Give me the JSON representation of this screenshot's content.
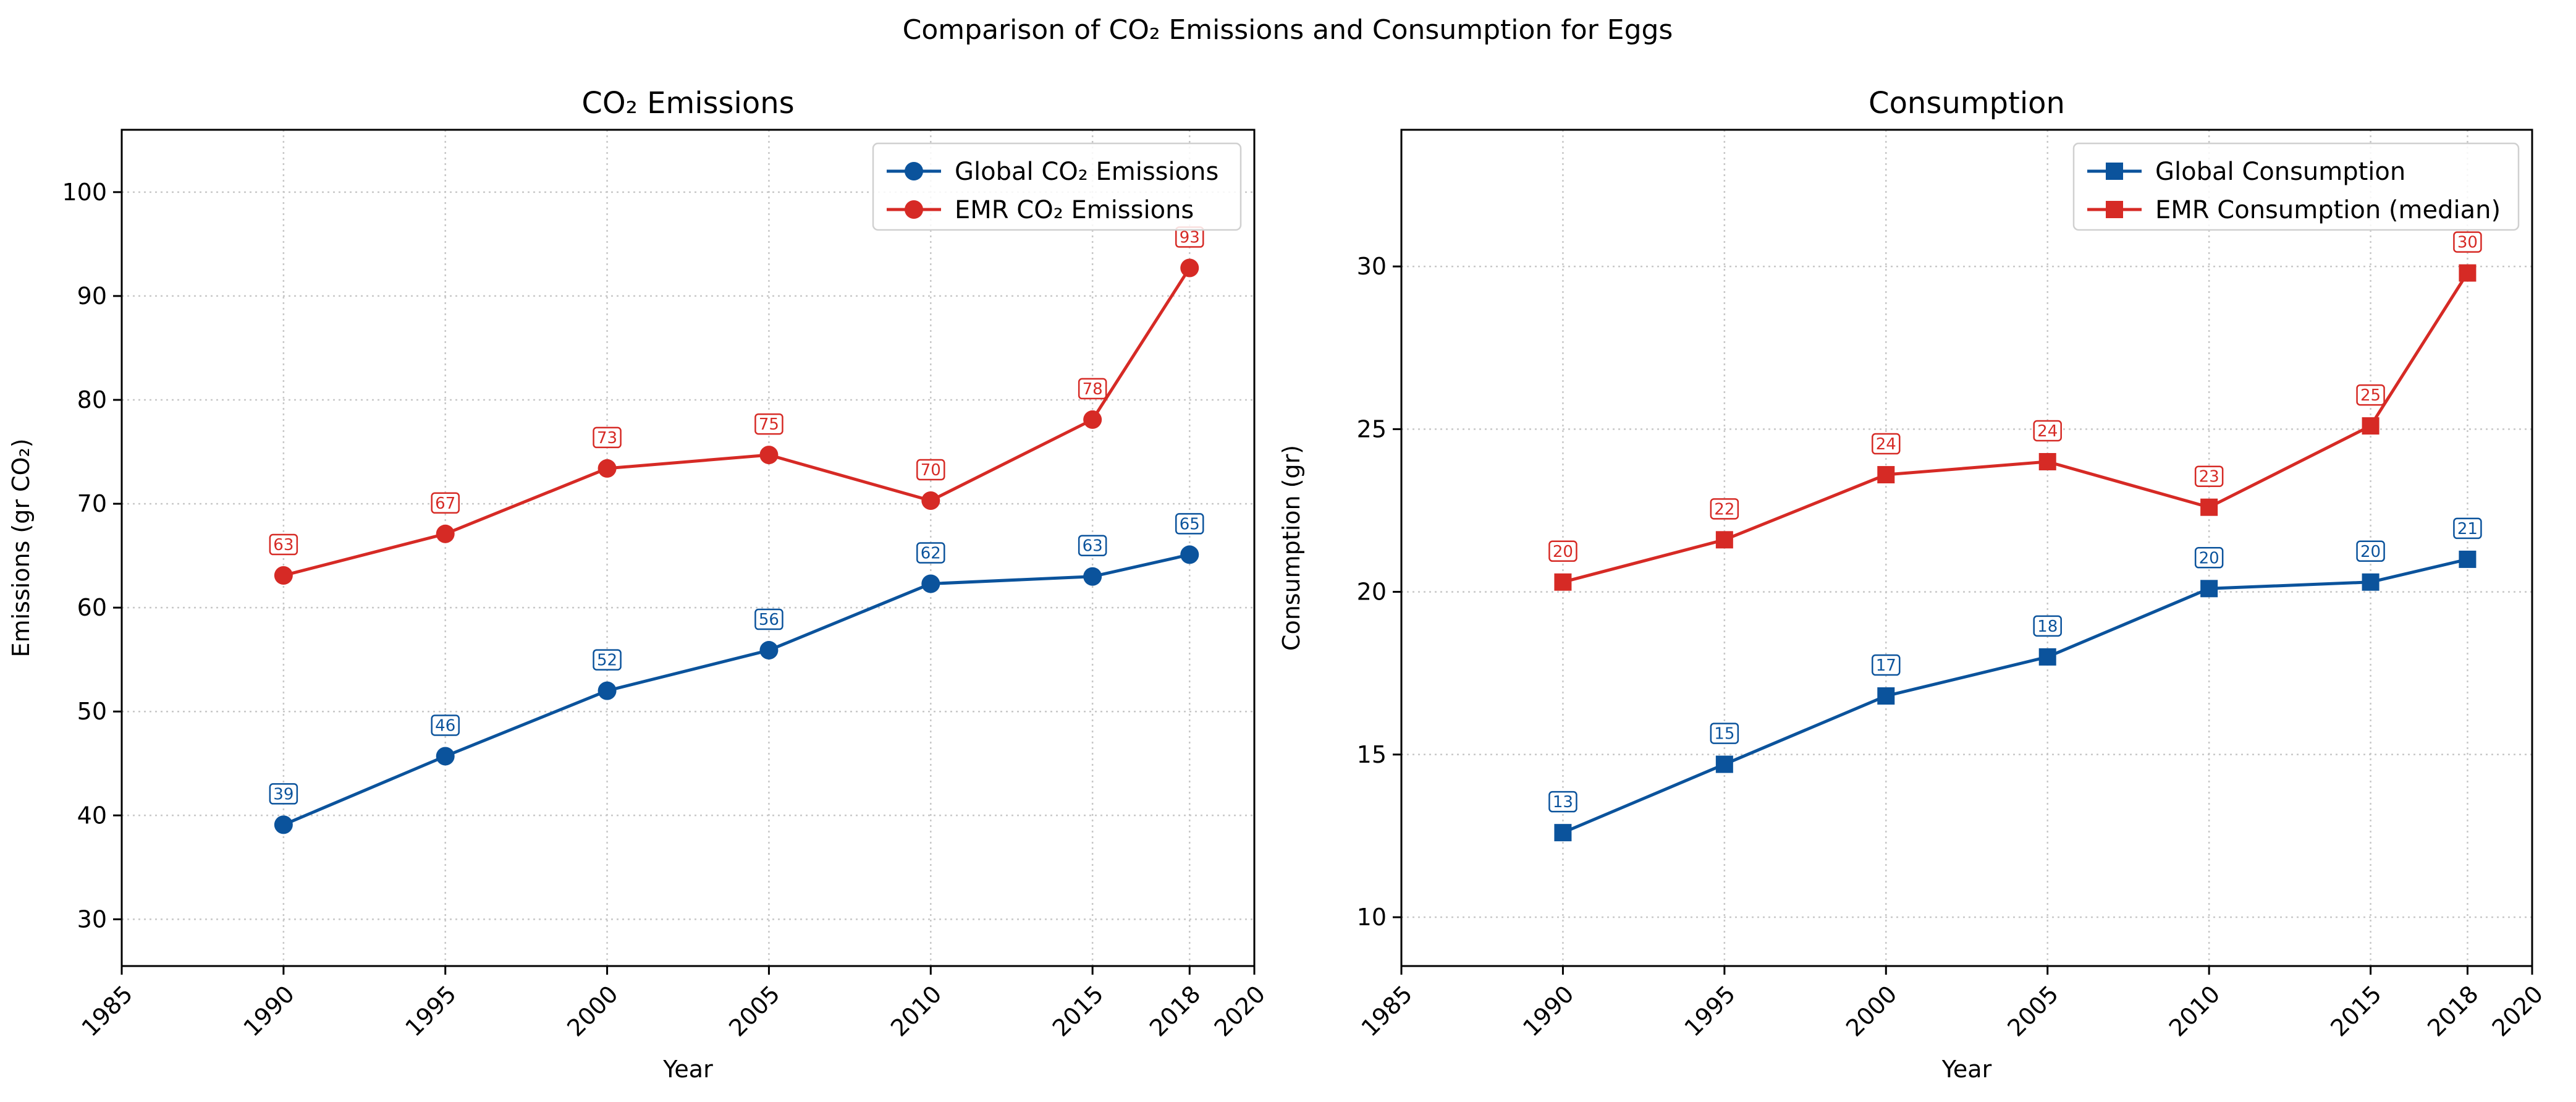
{
  "figure": {
    "title": "Comparison of CO₂ Emissions and Consumption for Eggs"
  },
  "colors": {
    "global": "#0b539c",
    "emr": "#d62a25",
    "grid": "#c8c8c8",
    "axis": "#000000"
  },
  "chart_data": [
    {
      "type": "line",
      "title": "CO₂ Emissions",
      "xlabel": "Year",
      "ylabel": "Emissions (gr CO₂)",
      "xlim": [
        1985,
        2020
      ],
      "ylim": [
        25.5,
        106
      ],
      "x_ticks": [
        1985,
        1990,
        1995,
        2000,
        2005,
        2010,
        2015,
        2018,
        2020
      ],
      "y_ticks": [
        30,
        40,
        50,
        60,
        70,
        80,
        90,
        100
      ],
      "grid": true,
      "legend": "top-right",
      "x": [
        1990,
        1995,
        2000,
        2005,
        2010,
        2015,
        2018
      ],
      "series": [
        {
          "name": "Global CO₂ Emissions",
          "marker": "circle",
          "color": "#0b539c",
          "values": [
            39.1,
            45.7,
            52.0,
            55.9,
            62.3,
            63.0,
            65.1
          ],
          "labels": [
            "39",
            "46",
            "52",
            "56",
            "62",
            "63",
            "65"
          ]
        },
        {
          "name": "EMR CO₂ Emissions",
          "marker": "circle",
          "color": "#d62a25",
          "values": [
            63.1,
            67.1,
            73.4,
            74.7,
            70.3,
            78.1,
            92.7
          ],
          "labels": [
            "63",
            "67",
            "73",
            "75",
            "70",
            "78",
            "93"
          ]
        }
      ]
    },
    {
      "type": "line",
      "title": "Consumption",
      "xlabel": "Year",
      "ylabel": "Consumption (gr)",
      "xlim": [
        1985,
        2020
      ],
      "ylim": [
        8.5,
        34.2
      ],
      "x_ticks": [
        1985,
        1990,
        1995,
        2000,
        2005,
        2010,
        2015,
        2018,
        2020
      ],
      "y_ticks": [
        10,
        15,
        20,
        25,
        30
      ],
      "grid": true,
      "legend": "top-right",
      "x": [
        1990,
        1995,
        2000,
        2005,
        2010,
        2015,
        2018
      ],
      "series": [
        {
          "name": "Global Consumption",
          "marker": "square",
          "color": "#0b539c",
          "values": [
            12.6,
            14.7,
            16.8,
            18.0,
            20.1,
            20.3,
            21.0
          ],
          "labels": [
            "13",
            "15",
            "17",
            "18",
            "20",
            "20",
            "21"
          ]
        },
        {
          "name": "EMR Consumption (median)",
          "marker": "square",
          "color": "#d62a25",
          "values": [
            20.3,
            21.6,
            23.6,
            24.0,
            22.6,
            25.1,
            29.8
          ],
          "labels": [
            "20",
            "22",
            "24",
            "24",
            "23",
            "25",
            "30"
          ]
        }
      ]
    }
  ]
}
